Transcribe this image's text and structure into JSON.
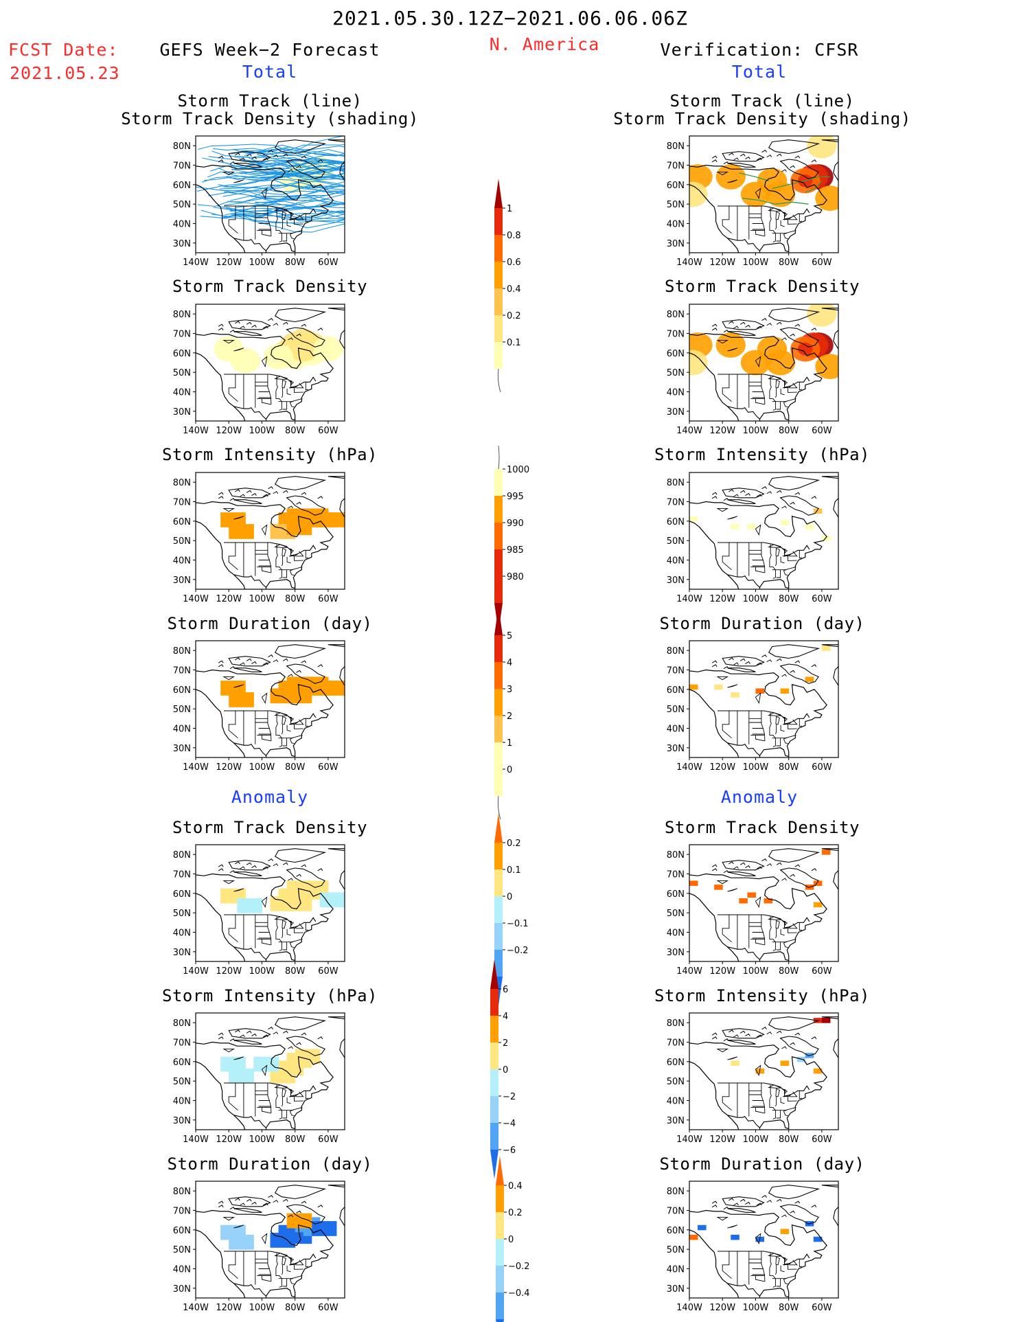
{
  "header": {
    "date_range": "2021.05.30.12Z−2021.06.06.06Z",
    "fcst_label": "FCST Date:",
    "fcst_date": "2021.05.23",
    "left_title": "GEFS Week−2 Forecast",
    "region": "N. America",
    "right_title": "Verification: CFSR",
    "total_label": "Total",
    "anomaly_label": "Anomaly"
  },
  "panel_titles": {
    "track": [
      "Storm Track (line)",
      "Storm Track Density (shading)"
    ],
    "density": "Storm Track Density",
    "intensity": "Storm Intensity (hPa)",
    "duration": "Storm Duration (day)"
  },
  "axes": {
    "lat_ticks": [
      "80N",
      "70N",
      "60N",
      "50N",
      "40N",
      "30N"
    ],
    "lon_ticks": [
      "140W",
      "120W",
      "100W",
      "80W",
      "60W"
    ]
  },
  "colors": {
    "yellow_light": "#ffffb3",
    "yellow": "#ffe680",
    "gold": "#ffc34d",
    "orange": "#ffa000",
    "orange_dark": "#ff6b00",
    "red": "#e62a0a",
    "red_dark": "#a50000",
    "blue_light": "#b4f0fa",
    "blue_pale": "#96d2fa",
    "blue": "#50a5f5",
    "blue_dark": "#1e6eeb",
    "track_line": "#1e96e6",
    "map_line": "#000000"
  },
  "chart_data": [
    {
      "id": "fcst-track",
      "type": "heatmap",
      "title": [
        "Storm Track (line)",
        "Storm Track Density (shading)"
      ],
      "xlim": [
        -140,
        -50
      ],
      "ylim": [
        25,
        85
      ],
      "cells": [
        [
          -75,
          66,
          1
        ],
        [
          -70,
          64,
          1
        ],
        [
          -80,
          62,
          1
        ],
        [
          -65,
          68,
          1
        ]
      ],
      "tracks": "many"
    },
    {
      "id": "fcst-density",
      "type": "heatmap",
      "title": "Storm Track Density",
      "xlim": [
        -140,
        -50
      ],
      "ylim": [
        25,
        85
      ],
      "cells": [
        [
          -75,
          66,
          2
        ],
        [
          -80,
          64,
          2
        ],
        [
          -70,
          64,
          2
        ],
        [
          -85,
          60,
          2
        ],
        [
          -80,
          58,
          1
        ],
        [
          -70,
          60,
          1
        ],
        [
          -75,
          62,
          2
        ],
        [
          -90,
          58,
          1
        ],
        [
          -120,
          62,
          1
        ],
        [
          -110,
          56,
          1
        ],
        [
          -60,
          62,
          1
        ]
      ]
    },
    {
      "id": "cfsr-track",
      "type": "heatmap",
      "title": [
        "Storm Track (line)",
        "Storm Track Density (shading)"
      ],
      "xlim": [
        -140,
        -50
      ],
      "ylim": [
        25,
        85
      ],
      "cells": [
        [
          -62,
          64,
          6
        ],
        [
          -65,
          64,
          5
        ],
        [
          -115,
          64,
          3
        ],
        [
          -135,
          64,
          3
        ],
        [
          -90,
          62,
          3
        ],
        [
          -70,
          62,
          4
        ],
        [
          -100,
          55,
          3
        ],
        [
          -85,
          55,
          3
        ],
        [
          -55,
          53,
          3
        ],
        [
          -60,
          80,
          2
        ],
        [
          -138,
          55,
          2
        ]
      ]
    },
    {
      "id": "cfsr-density",
      "type": "heatmap",
      "title": "Storm Track Density",
      "xlim": [
        -140,
        -50
      ],
      "ylim": [
        25,
        85
      ],
      "cells": [
        [
          -62,
          64,
          6
        ],
        [
          -65,
          64,
          5
        ],
        [
          -115,
          64,
          3
        ],
        [
          -135,
          64,
          3
        ],
        [
          -90,
          62,
          3
        ],
        [
          -70,
          62,
          4
        ],
        [
          -100,
          55,
          3
        ],
        [
          -85,
          55,
          3
        ],
        [
          -55,
          53,
          3
        ],
        [
          -60,
          80,
          2
        ],
        [
          -138,
          55,
          2
        ]
      ]
    },
    {
      "id": "fcst-intensity",
      "type": "heatmap",
      "title": "Storm Intensity (hPa)",
      "xlim": [
        -140,
        -50
      ],
      "ylim": [
        25,
        85
      ],
      "cells": [
        [
          -80,
          64,
          3
        ],
        [
          -75,
          62,
          3
        ],
        [
          -85,
          62,
          3
        ],
        [
          -70,
          64,
          3
        ],
        [
          -65,
          62,
          3
        ],
        [
          -60,
          62,
          3
        ],
        [
          -90,
          56,
          2
        ],
        [
          -80,
          58,
          3
        ],
        [
          -120,
          62,
          3
        ],
        [
          -115,
          56,
          3
        ]
      ]
    },
    {
      "id": "cfsr-intensity",
      "type": "heatmap",
      "title": "Storm Intensity (hPa)",
      "xlim": [
        -140,
        -50
      ],
      "ylim": [
        25,
        85
      ],
      "cells": [
        [
          -110,
          56,
          1
        ],
        [
          -100,
          56,
          1
        ],
        [
          -80,
          58,
          1
        ],
        [
          -60,
          64,
          2
        ],
        [
          -135,
          60,
          1
        ],
        [
          -55,
          50,
          1
        ],
        [
          -65,
          56,
          1
        ]
      ]
    },
    {
      "id": "fcst-duration",
      "type": "heatmap",
      "title": "Storm Duration (day)",
      "xlim": [
        -140,
        -50
      ],
      "ylim": [
        25,
        85
      ],
      "cells": [
        [
          -80,
          64,
          3
        ],
        [
          -75,
          62,
          3
        ],
        [
          -85,
          62,
          3
        ],
        [
          -70,
          64,
          3
        ],
        [
          -65,
          62,
          3
        ],
        [
          -60,
          62,
          3
        ],
        [
          -90,
          58,
          3
        ],
        [
          -80,
          58,
          3
        ],
        [
          -120,
          62,
          3
        ],
        [
          -115,
          56,
          3
        ]
      ]
    },
    {
      "id": "cfsr-duration",
      "type": "heatmap",
      "title": "Storm Duration (day)",
      "xlim": [
        -140,
        -50
      ],
      "ylim": [
        25,
        85
      ],
      "cells": [
        [
          -135,
          60,
          3
        ],
        [
          -120,
          60,
          2
        ],
        [
          -95,
          58,
          4
        ],
        [
          -80,
          58,
          3
        ],
        [
          -65,
          64,
          3
        ],
        [
          -55,
          80,
          2
        ],
        [
          -110,
          56,
          2
        ]
      ]
    },
    {
      "id": "fcst-density-anom",
      "type": "heatmap",
      "title": "Storm Track Density",
      "xlim": [
        -140,
        -50
      ],
      "ylim": [
        25,
        85
      ],
      "cells": [
        [
          -80,
          64,
          1
        ],
        [
          -75,
          62,
          1
        ],
        [
          -85,
          60,
          1
        ],
        [
          -70,
          64,
          1
        ],
        [
          -90,
          56,
          1
        ],
        [
          -80,
          56,
          1
        ],
        [
          -120,
          60,
          1
        ],
        [
          -110,
          55,
          -1
        ],
        [
          -60,
          58,
          -1
        ]
      ]
    },
    {
      "id": "cfsr-density-anom",
      "type": "heatmap",
      "title": "Storm Track Density",
      "xlim": [
        -140,
        -50
      ],
      "ylim": [
        25,
        85
      ],
      "cells": [
        [
          -135,
          64,
          3
        ],
        [
          -120,
          62,
          3
        ],
        [
          -100,
          58,
          3
        ],
        [
          -90,
          55,
          3
        ],
        [
          -65,
          62,
          3
        ],
        [
          -60,
          64,
          3
        ],
        [
          -55,
          80,
          3
        ],
        [
          -60,
          53,
          2
        ],
        [
          -105,
          55,
          3
        ]
      ]
    },
    {
      "id": "fcst-intensity-anom",
      "type": "heatmap",
      "title": "Storm Intensity (hPa)",
      "xlim": [
        -140,
        -50
      ],
      "ylim": [
        25,
        85
      ],
      "cells": [
        [
          -85,
          58,
          1
        ],
        [
          -80,
          62,
          1
        ],
        [
          -75,
          64,
          1
        ],
        [
          -90,
          54,
          1
        ],
        [
          -120,
          60,
          -1
        ],
        [
          -115,
          54,
          -1
        ],
        [
          -100,
          60,
          -1
        ]
      ]
    },
    {
      "id": "cfsr-intensity-anom",
      "type": "heatmap",
      "title": "Storm Intensity (hPa)",
      "xlim": [
        -140,
        -50
      ],
      "ylim": [
        25,
        85
      ],
      "cells": [
        [
          -60,
          80,
          4
        ],
        [
          -55,
          80,
          5
        ],
        [
          -110,
          58,
          1
        ],
        [
          -95,
          54,
          2
        ],
        [
          -80,
          58,
          2
        ],
        [
          -70,
          60,
          -2
        ],
        [
          -65,
          62,
          -3
        ],
        [
          -60,
          54,
          2
        ]
      ]
    },
    {
      "id": "fcst-duration-anom",
      "type": "heatmap",
      "title": "Storm Duration (day)",
      "xlim": [
        -140,
        -50
      ],
      "ylim": [
        25,
        85
      ],
      "cells": [
        [
          -85,
          60,
          -4
        ],
        [
          -90,
          56,
          -4
        ],
        [
          -80,
          58,
          -4
        ],
        [
          -75,
          64,
          -3
        ],
        [
          -70,
          62,
          -3
        ],
        [
          -65,
          62,
          -4
        ],
        [
          -120,
          60,
          -2
        ],
        [
          -115,
          55,
          -2
        ],
        [
          -80,
          66,
          2
        ]
      ]
    },
    {
      "id": "cfsr-duration-anom",
      "type": "heatmap",
      "title": "Storm Duration (day)",
      "xlim": [
        -140,
        -50
      ],
      "ylim": [
        25,
        85
      ],
      "cells": [
        [
          -130,
          60,
          -4
        ],
        [
          -110,
          55,
          -4
        ],
        [
          -95,
          54,
          -4
        ],
        [
          -80,
          58,
          2
        ],
        [
          -65,
          62,
          -4
        ],
        [
          -60,
          54,
          -4
        ],
        [
          -135,
          55,
          3
        ]
      ]
    }
  ],
  "colorbars": [
    {
      "id": "cb-density",
      "labels": [
        "1",
        "0.8",
        "0.6",
        "0.4",
        "0.2",
        "0.1"
      ]
    },
    {
      "id": "cb-intensity",
      "labels": [
        "1000",
        "995",
        "990",
        "985",
        "980"
      ]
    },
    {
      "id": "cb-duration",
      "labels": [
        "5",
        "4",
        "3",
        "2",
        "1",
        "0"
      ]
    },
    {
      "id": "cb-density-anom",
      "labels": [
        "0.2",
        "0.1",
        "0",
        "−0.1",
        "−0.2"
      ]
    },
    {
      "id": "cb-intensity-anom",
      "labels": [
        "6",
        "4",
        "2",
        "0",
        "−2",
        "−4",
        "−6"
      ]
    },
    {
      "id": "cb-duration-anom",
      "labels": [
        "0.4",
        "0.2",
        "0",
        "−0.2",
        "−0.4"
      ]
    }
  ]
}
